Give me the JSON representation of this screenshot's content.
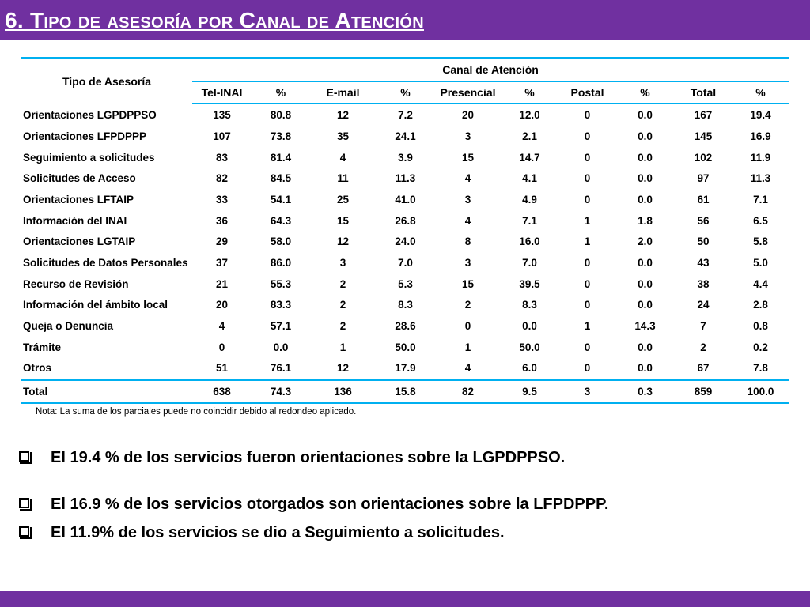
{
  "slide": {
    "title": "6. Tipo de asesoría por Canal de Atención",
    "accent_color": "#7030a0",
    "table_line_color": "#00b0f0"
  },
  "table": {
    "corner_header": "Tipo de Asesoría",
    "group_header": "Canal de Atención",
    "columns": [
      "Tel-INAI",
      "%",
      "E-mail",
      "%",
      "Presencial",
      "%",
      "Postal",
      "%",
      "Total",
      "%"
    ],
    "rows": [
      {
        "label": "Orientaciones LGPDPPSO",
        "values": [
          "135",
          "80.8",
          "12",
          "7.2",
          "20",
          "12.0",
          "0",
          "0.0",
          "167",
          "19.4"
        ]
      },
      {
        "label": "Orientaciones LFPDPPP",
        "values": [
          "107",
          "73.8",
          "35",
          "24.1",
          "3",
          "2.1",
          "0",
          "0.0",
          "145",
          "16.9"
        ]
      },
      {
        "label": "Seguimiento a solicitudes",
        "values": [
          "83",
          "81.4",
          "4",
          "3.9",
          "15",
          "14.7",
          "0",
          "0.0",
          "102",
          "11.9"
        ]
      },
      {
        "label": "Solicitudes de Acceso",
        "values": [
          "82",
          "84.5",
          "11",
          "11.3",
          "4",
          "4.1",
          "0",
          "0.0",
          "97",
          "11.3"
        ]
      },
      {
        "label": "Orientaciones LFTAIP",
        "values": [
          "33",
          "54.1",
          "25",
          "41.0",
          "3",
          "4.9",
          "0",
          "0.0",
          "61",
          "7.1"
        ]
      },
      {
        "label": "Información del INAI",
        "values": [
          "36",
          "64.3",
          "15",
          "26.8",
          "4",
          "7.1",
          "1",
          "1.8",
          "56",
          "6.5"
        ]
      },
      {
        "label": "Orientaciones LGTAIP",
        "values": [
          "29",
          "58.0",
          "12",
          "24.0",
          "8",
          "16.0",
          "1",
          "2.0",
          "50",
          "5.8"
        ]
      },
      {
        "label": "Solicitudes de Datos Personales",
        "values": [
          "37",
          "86.0",
          "3",
          "7.0",
          "3",
          "7.0",
          "0",
          "0.0",
          "43",
          "5.0"
        ]
      },
      {
        "label": "Recurso de Revisión",
        "values": [
          "21",
          "55.3",
          "2",
          "5.3",
          "15",
          "39.5",
          "0",
          "0.0",
          "38",
          "4.4"
        ]
      },
      {
        "label": "Información del ámbito local",
        "values": [
          "20",
          "83.3",
          "2",
          "8.3",
          "2",
          "8.3",
          "0",
          "0.0",
          "24",
          "2.8"
        ]
      },
      {
        "label": "Queja o Denuncia",
        "values": [
          "4",
          "57.1",
          "2",
          "28.6",
          "0",
          "0.0",
          "1",
          "14.3",
          "7",
          "0.8"
        ]
      },
      {
        "label": "Trámite",
        "values": [
          "0",
          "0.0",
          "1",
          "50.0",
          "1",
          "50.0",
          "0",
          "0.0",
          "2",
          "0.2"
        ]
      },
      {
        "label": "Otros",
        "values": [
          "51",
          "76.1",
          "12",
          "17.9",
          "4",
          "6.0",
          "0",
          "0.0",
          "67",
          "7.8"
        ]
      }
    ],
    "total": {
      "label": "Total",
      "values": [
        "638",
        "74.3",
        "136",
        "15.8",
        "82",
        "9.5",
        "3",
        "0.3",
        "859",
        "100.0"
      ]
    }
  },
  "note": "Nota: La suma de los parciales puede no coincidir debido al redondeo aplicado.",
  "bullets": [
    "El 19.4 % de los servicios fueron orientaciones sobre la LGPDPPSO.",
    "El 16.9 % de los servicios otorgados son orientaciones sobre la LFPDPPP.",
    "El 11.9% de los servicios se dio a Seguimiento a solicitudes."
  ],
  "icons": {
    "bullet": "checkbox-square-icon"
  }
}
